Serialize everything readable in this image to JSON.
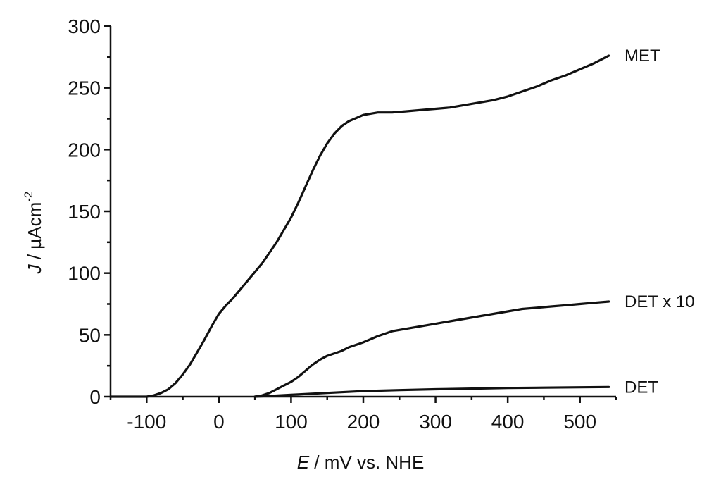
{
  "chart_data": {
    "type": "line",
    "title": "",
    "xlabel": {
      "italic": "E",
      "rest": " / mV vs. NHE"
    },
    "ylabel": {
      "italic": "J",
      "rest": " / µAcm",
      "sup": "-2"
    },
    "xlim": [
      -150,
      550
    ],
    "ylim": [
      0,
      300
    ],
    "xticks": [
      -100,
      0,
      100,
      200,
      300,
      400,
      500
    ],
    "yticks": [
      0,
      50,
      100,
      150,
      200,
      250,
      300
    ],
    "grid": false,
    "legend": "inline-right",
    "series": [
      {
        "name": "MET",
        "x": [
          -150,
          -120,
          -100,
          -90,
          -80,
          -70,
          -60,
          -50,
          -40,
          -30,
          -20,
          -10,
          0,
          10,
          20,
          40,
          60,
          80,
          100,
          110,
          120,
          130,
          140,
          150,
          160,
          170,
          180,
          200,
          220,
          240,
          260,
          280,
          300,
          320,
          340,
          360,
          380,
          400,
          420,
          440,
          460,
          480,
          500,
          520,
          540
        ],
        "y": [
          0,
          0,
          0,
          1,
          3,
          6,
          11,
          18,
          26,
          36,
          46,
          57,
          67,
          74,
          80,
          94,
          108,
          125,
          145,
          157,
          170,
          183,
          195,
          205,
          213,
          219,
          223,
          228,
          230,
          230,
          231,
          232,
          233,
          234,
          236,
          238,
          240,
          243,
          247,
          251,
          256,
          260,
          265,
          270,
          276
        ]
      },
      {
        "name": "DET x 10",
        "x": [
          50,
          60,
          70,
          80,
          90,
          100,
          110,
          120,
          130,
          140,
          150,
          160,
          170,
          180,
          200,
          220,
          240,
          260,
          280,
          300,
          320,
          340,
          360,
          380,
          400,
          420,
          440,
          460,
          480,
          500,
          520,
          540
        ],
        "y": [
          0,
          1,
          3,
          6,
          9,
          12,
          16,
          21,
          26,
          30,
          33,
          35,
          37,
          40,
          44,
          49,
          53,
          55,
          57,
          59,
          61,
          63,
          65,
          67,
          69,
          71,
          72,
          73,
          74,
          75,
          76,
          77
        ]
      },
      {
        "name": "DET",
        "x": [
          50,
          100,
          150,
          200,
          250,
          300,
          350,
          400,
          450,
          500,
          540
        ],
        "y": [
          0,
          1.5,
          3,
          4.5,
          5.3,
          6,
          6.5,
          7,
          7.3,
          7.6,
          7.8
        ]
      }
    ]
  }
}
